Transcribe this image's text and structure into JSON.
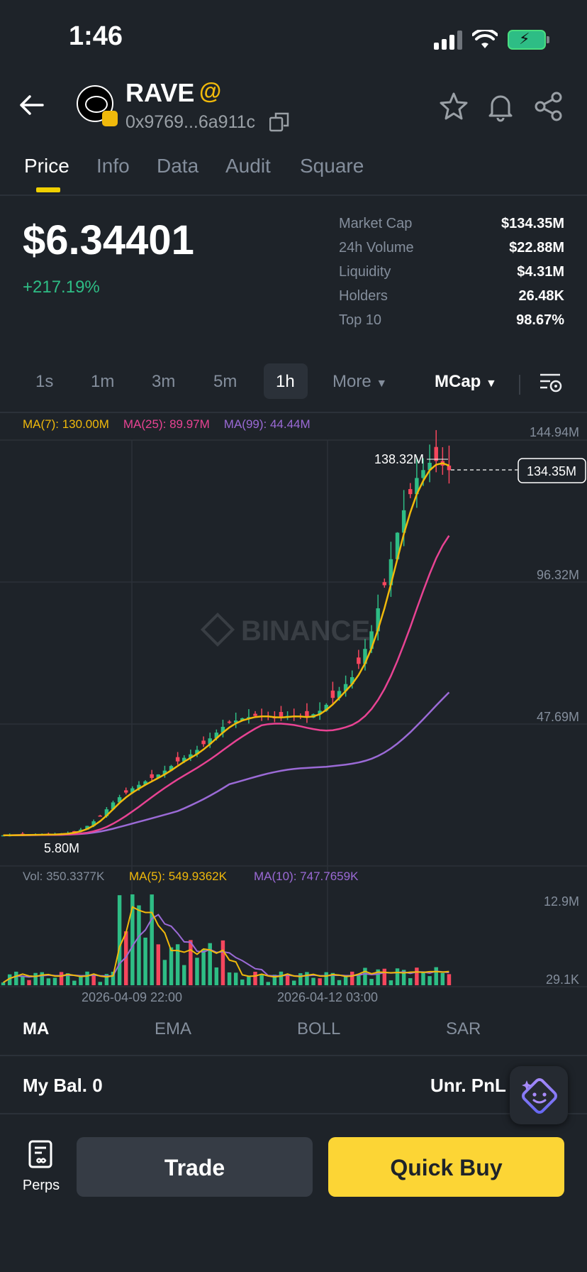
{
  "status": {
    "time": "1:46"
  },
  "token": {
    "name": "RAVE",
    "tag": "@",
    "address": "0x9769...6a911c"
  },
  "tabs": [
    {
      "label": "Price"
    },
    {
      "label": "Info"
    },
    {
      "label": "Data"
    },
    {
      "label": "Audit"
    },
    {
      "label": "Square"
    }
  ],
  "price": {
    "value": "$6.34401",
    "change": "+217.19%"
  },
  "stats": [
    {
      "label": "Market Cap",
      "value": "$134.35M"
    },
    {
      "label": "24h Volume",
      "value": "$22.88M"
    },
    {
      "label": "Liquidity",
      "value": "$4.31M"
    },
    {
      "label": "Holders",
      "value": "26.48K"
    },
    {
      "label": "Top 10",
      "value": "98.67%"
    }
  ],
  "intervals": [
    {
      "label": "1s"
    },
    {
      "label": "1m"
    },
    {
      "label": "3m"
    },
    {
      "label": "5m"
    },
    {
      "label": "1h"
    },
    {
      "label": "More"
    }
  ],
  "active_interval": "1h",
  "metric_select": "MCap",
  "ma_legend": {
    "ma7": "MA(7): 130.00M",
    "ma25": "MA(25): 89.97M",
    "ma99": "MA(99): 44.44M"
  },
  "vol_legend": {
    "vol": "Vol: 350.3377K",
    "ma5": "MA(5): 549.9362K",
    "ma10": "MA(10): 747.7659K"
  },
  "axis": {
    "y_labels": [
      "144.94M",
      "96.32M",
      "47.69M"
    ],
    "high_label": "138.32M",
    "low_label": "5.80M",
    "current_label": "134.35M",
    "vol_labels": [
      "12.9M",
      "29.1K"
    ],
    "x_labels": [
      "2026-04-09 22:00",
      "2026-04-12 03:00"
    ]
  },
  "watermark": "BINANCE",
  "indicators": [
    {
      "label": "MA"
    },
    {
      "label": "EMA"
    },
    {
      "label": "BOLL"
    },
    {
      "label": "SAR"
    }
  ],
  "balance": {
    "label": "My Bal.",
    "value": "0",
    "pnl_label": "Unr. PnL"
  },
  "bottom": {
    "perps": "Perps",
    "trade": "Trade",
    "quick_buy": "Quick Buy"
  },
  "colors": {
    "up": "#2ebd85",
    "down": "#f6465d",
    "accent": "#fcd535",
    "ma7": "#f0b90b",
    "ma25": "#e84393",
    "ma99": "#9b6ad6"
  },
  "chart_data": {
    "type": "candlestick",
    "y_unit": "market cap (USD)",
    "ylim": [
      5.8,
      144.94
    ],
    "x_ticks": [
      "2026-04-09 22:00",
      "2026-04-12 03:00"
    ],
    "close_series_approx": [
      5.8,
      5.9,
      6.0,
      6.1,
      6.5,
      8,
      12,
      18,
      22,
      25,
      28,
      32,
      35,
      40,
      45,
      47,
      48,
      47,
      48,
      47,
      50,
      56,
      62,
      75,
      95,
      118,
      132,
      138.32,
      134.35
    ],
    "current_value": 134.35,
    "high": 138.32,
    "low": 5.8,
    "ma": {
      "ma7": 130.0,
      "ma25": 89.97,
      "ma99": 44.44
    },
    "volume": {
      "last": "350.3377K",
      "ma5": "549.9362K",
      "ma10": "747.7659K",
      "max_label": "12.9M",
      "min_label": "29.1K"
    }
  }
}
